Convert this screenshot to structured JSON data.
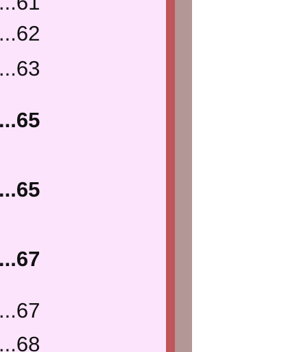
{
  "toc": {
    "entries": [
      {
        "text": "...61",
        "bold": false
      },
      {
        "text": "...62",
        "bold": false
      },
      {
        "text": "...63",
        "bold": false
      },
      {
        "text": "...65",
        "bold": true
      },
      {
        "text": "...65",
        "bold": true
      },
      {
        "text": "...67",
        "bold": true
      },
      {
        "text": "...67",
        "bold": false
      },
      {
        "text": "...68",
        "bold": false
      }
    ]
  },
  "colors": {
    "panel_background": "#fde4fd",
    "panel_edge": "#c0555a",
    "scroll_track": "#b39797",
    "text": "#111111"
  }
}
